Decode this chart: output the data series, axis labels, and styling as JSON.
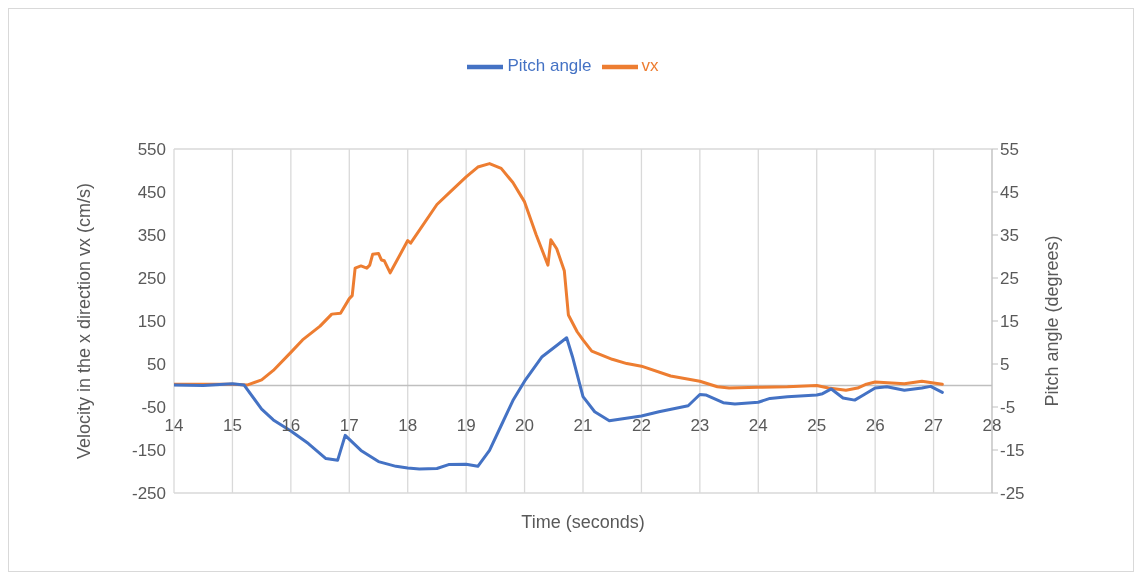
{
  "chart_data": {
    "type": "line",
    "xlabel": "Time (seconds)",
    "ylabel": "Velocity in the x direction vx (cm/s)",
    "y2label": "Pitch angle (degrees)",
    "xlim": [
      14,
      28
    ],
    "xticks": [
      14,
      15,
      16,
      17,
      18,
      19,
      20,
      21,
      22,
      23,
      24,
      25,
      26,
      27,
      28
    ],
    "ylim": [
      -250,
      550
    ],
    "yticks": [
      -250,
      -150,
      -50,
      50,
      150,
      250,
      350,
      450,
      550
    ],
    "y2lim": [
      -25,
      55
    ],
    "y2ticks": [
      -25,
      -15,
      -5,
      5,
      15,
      25,
      35,
      45,
      55
    ],
    "grid": true,
    "legend": "top",
    "marker": "none",
    "line_style": "solid",
    "series": [
      {
        "name": "vx",
        "color": "#ed7d31",
        "x": [
          14,
          15,
          15.25,
          15.5,
          15.7,
          16,
          16.2,
          16.5,
          16.7,
          16.85,
          17,
          17.05,
          17.1,
          17.2,
          17.3,
          17.35,
          17.4,
          17.5,
          17.55,
          17.6,
          17.7,
          18,
          18.05,
          18.5,
          18.75,
          19,
          19.2,
          19.4,
          19.6,
          19.8,
          20,
          20.2,
          20.4,
          20.45,
          20.55,
          20.68,
          20.75,
          20.9,
          21,
          21.15,
          21.5,
          21.75,
          22,
          22.5,
          23,
          23.3,
          23.5,
          24,
          24.5,
          25,
          25.2,
          25.5,
          25.7,
          25.85,
          26,
          26.5,
          26.8,
          27,
          27.15
        ],
        "values": [
          3,
          3,
          1,
          13,
          35,
          77,
          106,
          138,
          166,
          168,
          202,
          209,
          273,
          278,
          273,
          280,
          305,
          307,
          292,
          290,
          262,
          337,
          331,
          421,
          453,
          485,
          508,
          516,
          505,
          472,
          427,
          350,
          280,
          339,
          318,
          267,
          164,
          125,
          106,
          80,
          61,
          51,
          45,
          22,
          10,
          -3,
          -6,
          -4,
          -3,
          0,
          -6,
          -11,
          -6,
          3,
          8,
          4,
          10,
          6,
          3
        ]
      },
      {
        "name": "Pitch angle",
        "color": "#4472c4",
        "axis": "y2",
        "x": [
          14,
          14.5,
          15,
          15.2,
          15.5,
          15.7,
          16,
          16.3,
          16.6,
          16.8,
          16.93,
          17.2,
          17.5,
          17.8,
          18,
          18.2,
          18.5,
          18.7,
          19,
          19.2,
          19.4,
          19.6,
          19.8,
          20,
          20.3,
          20.55,
          20.72,
          20.82,
          21,
          21.2,
          21.45,
          22,
          22.3,
          22.8,
          23,
          23.1,
          23.4,
          23.6,
          24,
          24.2,
          24.5,
          25,
          25.1,
          25.25,
          25.45,
          25.65,
          25.8,
          26,
          26.2,
          26.5,
          26.8,
          26.95,
          27.15
        ],
        "values": [
          0.1,
          0,
          0.4,
          0.1,
          -5.5,
          -8,
          -10.6,
          -13.5,
          -17,
          -17.4,
          -11.6,
          -15.1,
          -17.7,
          -18.8,
          -19.2,
          -19.4,
          -19.3,
          -18.4,
          -18.3,
          -18.8,
          -15.1,
          -9.3,
          -3.5,
          1,
          6.7,
          9.3,
          11.1,
          6.7,
          -2.6,
          -6.1,
          -8.2,
          -7.1,
          -6.1,
          -4.7,
          -2.1,
          -2.2,
          -4,
          -4.3,
          -3.9,
          -3,
          -2.6,
          -2.2,
          -1.9,
          -0.8,
          -2.9,
          -3.4,
          -2.2,
          -0.6,
          -0.3,
          -1.1,
          -0.6,
          -0.2,
          -1.6
        ]
      }
    ]
  }
}
